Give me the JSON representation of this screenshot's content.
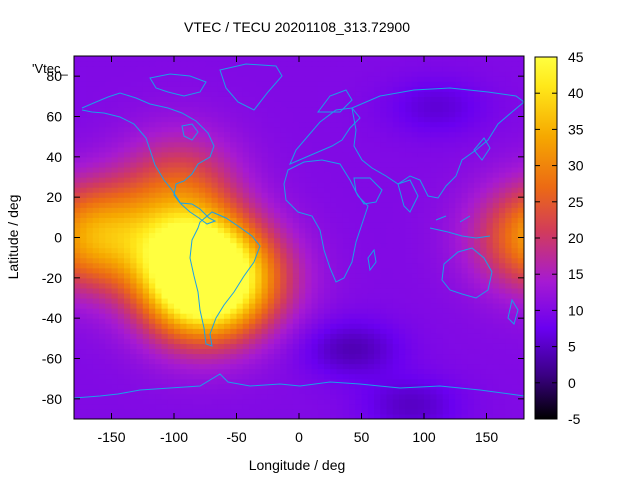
{
  "chart_data": {
    "type": "heatmap",
    "title": "VTEC / TECU 20201108_313.72900",
    "xlabel": "Longitude / deg",
    "ylabel": "Latitude / deg",
    "xlim": [
      -180,
      180
    ],
    "ylim": [
      -90,
      90
    ],
    "xticks": [
      -150,
      -100,
      -50,
      0,
      50,
      100,
      150
    ],
    "yticks": [
      -80,
      -60,
      -40,
      -20,
      0,
      20,
      40,
      60,
      80
    ],
    "grid": false,
    "series_label": "'Vtec_",
    "colorbar": {
      "min": -5,
      "max": 45,
      "ticks": [
        -5,
        0,
        5,
        10,
        15,
        20,
        25,
        30,
        35,
        40,
        45
      ],
      "palette": "gnuplot-rgbformulae-7-5-15",
      "stops": [
        "#000000",
        "#3a0082",
        "#6a00f0",
        "#a61ad2",
        "#d23c5a",
        "#ec6a14",
        "#f6a800",
        "#ffe81a",
        "#ffff40"
      ]
    },
    "background_vtec": 10,
    "features": [
      {
        "name": "south-america-peak",
        "lon": -85,
        "lat": -8,
        "value": 40
      },
      {
        "name": "south-america-south",
        "lon": -80,
        "lat": -28,
        "value": 38
      },
      {
        "name": "east-pacific-band",
        "lon": -150,
        "lat": 2,
        "value": 25
      },
      {
        "name": "central-america",
        "lon": -95,
        "lat": 27,
        "value": 22
      },
      {
        "name": "south-atlantic",
        "lon": -45,
        "lat": -20,
        "value": 24
      },
      {
        "name": "east-edge-band",
        "lon": 180,
        "lat": 0,
        "value": 22
      },
      {
        "name": "south-atlantic-low",
        "lon": 42,
        "lat": -55,
        "value": 4
      },
      {
        "name": "siberia-low",
        "lon": 110,
        "lat": 65,
        "value": 6
      },
      {
        "name": "antarctic-low",
        "lon": 90,
        "lat": -83,
        "value": 5
      }
    ],
    "overlay": "world coastlines"
  }
}
